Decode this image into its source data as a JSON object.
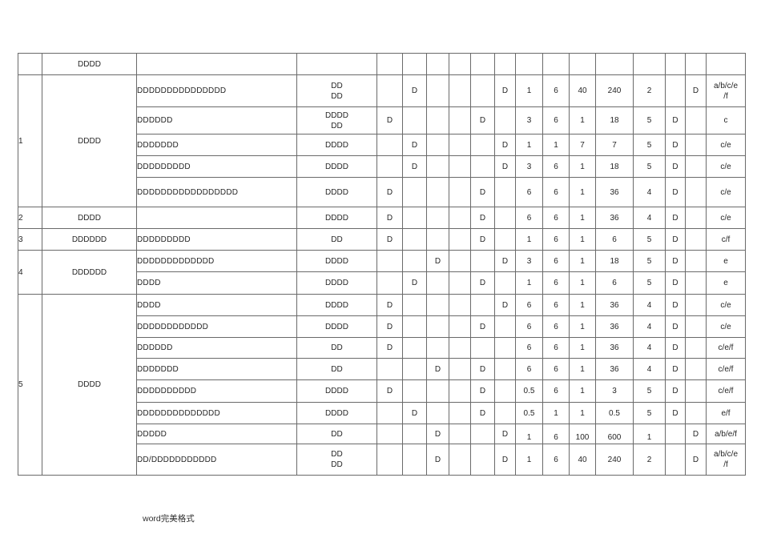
{
  "colors": {
    "background": "#ffffff",
    "border": "#6a6a6a",
    "text": "#262626"
  },
  "footer": {
    "text": "word完美格式"
  },
  "table": {
    "header": {
      "col2": "DDDD"
    },
    "rows": [
      {
        "group": {
          "no": "1",
          "cat": "DDDD",
          "span": 5
        },
        "item": "DDDDDDDDDDDDDDD",
        "spec": [
          "DD",
          "DD"
        ],
        "marks": [
          "",
          "D",
          "",
          "",
          "",
          "D"
        ],
        "nums": [
          "1",
          "6",
          "40",
          "240",
          "2"
        ],
        "f1": "",
        "f2": "D",
        "grade": [
          "a/b/c/e",
          "/f"
        ]
      },
      {
        "item": "DDDDDD",
        "spec": [
          "DDDD",
          "DD"
        ],
        "marks": [
          "D",
          "",
          "",
          "",
          "D",
          ""
        ],
        "nums": [
          "3",
          "6",
          "1",
          "18",
          "5"
        ],
        "f1": "D",
        "f2": "",
        "grade": [
          "c"
        ]
      },
      {
        "item": "DDDDDDD",
        "spec": [
          "DDDD"
        ],
        "marks": [
          "",
          "D",
          "",
          "",
          "",
          "D"
        ],
        "nums": [
          "1",
          "1",
          "7",
          "7",
          "5"
        ],
        "f1": "D",
        "f2": "",
        "grade": [
          "c/e"
        ]
      },
      {
        "item": "DDDDDDDDD",
        "spec": [
          "DDDD"
        ],
        "marks": [
          "",
          "D",
          "",
          "",
          "",
          "D"
        ],
        "nums": [
          "3",
          "6",
          "1",
          "18",
          "5"
        ],
        "f1": "D",
        "f2": "",
        "grade": [
          "c/e"
        ]
      },
      {
        "item": "DDDDDDDDDDDDDDDDD",
        "spec": [
          "DDDD"
        ],
        "marks": [
          "D",
          "",
          "",
          "",
          "D",
          ""
        ],
        "nums": [
          "6",
          "6",
          "1",
          "36",
          "4"
        ],
        "f1": "D",
        "f2": "",
        "grade": [
          "c/e"
        ]
      },
      {
        "group": {
          "no": "2",
          "cat": "DDDD",
          "span": 1
        },
        "item": "",
        "spec": [
          "DDDD"
        ],
        "marks": [
          "D",
          "",
          "",
          "",
          "D",
          ""
        ],
        "nums": [
          "6",
          "6",
          "1",
          "36",
          "4"
        ],
        "f1": "D",
        "f2": "",
        "grade": [
          "c/e"
        ]
      },
      {
        "group": {
          "no": "3",
          "cat": "DDDDDD",
          "span": 1
        },
        "item": "DDDDDDDDD",
        "spec": [
          "DD"
        ],
        "marks": [
          "D",
          "",
          "",
          "",
          "D",
          ""
        ],
        "nums": [
          "1",
          "6",
          "1",
          "6",
          "5"
        ],
        "f1": "D",
        "f2": "",
        "grade": [
          "c/f"
        ]
      },
      {
        "group": {
          "no": "4",
          "cat": "DDDDDD",
          "span": 2
        },
        "item": "DDDDDDDDDDDDD",
        "spec": [
          "DDDD"
        ],
        "marks": [
          "",
          "",
          "D",
          "",
          "",
          "D"
        ],
        "nums": [
          "3",
          "6",
          "1",
          "18",
          "5"
        ],
        "f1": "D",
        "f2": "",
        "grade": [
          "e"
        ]
      },
      {
        "item": "DDDD",
        "spec": [
          "DDDD"
        ],
        "marks": [
          "",
          "D",
          "",
          "",
          "D",
          ""
        ],
        "nums": [
          "1",
          "6",
          "1",
          "6",
          "5"
        ],
        "f1": "D",
        "f2": "",
        "grade": [
          "e"
        ]
      },
      {
        "group": {
          "no": "5",
          "cat": "DDDD",
          "span": 8
        },
        "item": "DDDD",
        "spec": [
          "DDDD"
        ],
        "marks": [
          "D",
          "",
          "",
          "",
          "",
          "D"
        ],
        "nums": [
          "6",
          "6",
          "1",
          "36",
          "4"
        ],
        "f1": "D",
        "f2": "",
        "grade": [
          "c/e"
        ]
      },
      {
        "item": "DDDDDDDDDDDD",
        "spec": [
          "DDDD"
        ],
        "marks": [
          "D",
          "",
          "",
          "",
          "D",
          ""
        ],
        "nums": [
          "6",
          "6",
          "1",
          "36",
          "4"
        ],
        "f1": "D",
        "f2": "",
        "grade": [
          "c/e"
        ]
      },
      {
        "item": "DDDDDD",
        "spec": [
          "DD"
        ],
        "marks": [
          "D",
          "",
          "",
          "",
          "",
          ""
        ],
        "nums": [
          "6",
          "6",
          "1",
          "36",
          "4"
        ],
        "f1": "D",
        "f2": "",
        "grade": [
          "c/e/f"
        ]
      },
      {
        "item": "DDDDDDD",
        "spec": [
          "DD"
        ],
        "marks": [
          "",
          "",
          "D",
          "",
          "D",
          ""
        ],
        "nums": [
          "6",
          "6",
          "1",
          "36",
          "4"
        ],
        "f1": "D",
        "f2": "",
        "grade": [
          "c/e/f"
        ]
      },
      {
        "item": "DDDDDDDDDD",
        "spec": [
          "DDDD"
        ],
        "marks": [
          "D",
          "",
          "",
          "",
          "D",
          ""
        ],
        "nums": [
          "0.5",
          "6",
          "1",
          "3",
          "5"
        ],
        "f1": "D",
        "f2": "",
        "grade": [
          "c/e/f"
        ]
      },
      {
        "item": "DDDDDDDDDDDDDD",
        "spec": [
          "DDDD"
        ],
        "marks": [
          "",
          "D",
          "",
          "",
          "D",
          ""
        ],
        "nums": [
          "0.5",
          "1",
          "1",
          "0.5",
          "5"
        ],
        "f1": "D",
        "f2": "",
        "grade": [
          "e/f"
        ]
      },
      {
        "item": "DDDDD",
        "spec": [
          "DD"
        ],
        "marks": [
          "",
          "",
          "D",
          "",
          "",
          "D"
        ],
        "nums": [
          "1",
          "6",
          "100",
          "600",
          "1"
        ],
        "f1": "",
        "f2": "D",
        "grade": [
          "a/b/e/f"
        ]
      },
      {
        "item": "DD/DDDDDDDDDDD",
        "spec": [
          "DD",
          "DD"
        ],
        "marks": [
          "",
          "",
          "D",
          "",
          "",
          "D"
        ],
        "nums": [
          "1",
          "6",
          "40",
          "240",
          "2"
        ],
        "f1": "",
        "f2": "D",
        "grade": [
          "a/b/c/e",
          "/f"
        ]
      }
    ]
  }
}
